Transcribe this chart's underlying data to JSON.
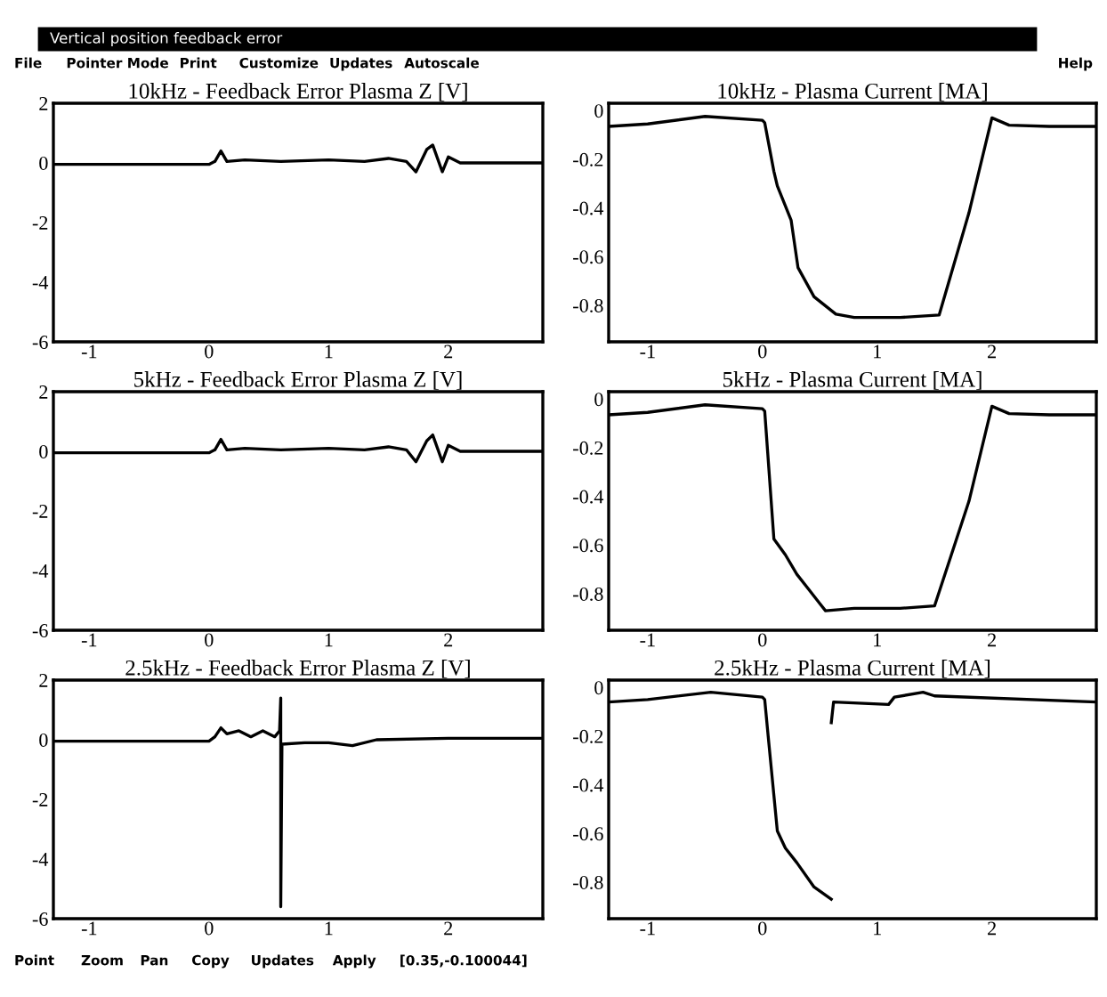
{
  "chart_data": [
    {
      "type": "line",
      "title": "10kHz - Feedback Error Plasma Z [V]",
      "annotations": [
        "Vertical position feedback error",
        "File",
        "Pointer Mode",
        "Print",
        "Customize",
        "Updates",
        "Autoscale",
        "Help"
      ],
      "color": "#000000",
      "xlim": [
        -1.3,
        2.79
      ],
      "ylim": [
        -6,
        2
      ],
      "xticks": [
        -1,
        0,
        1,
        2
      ],
      "yticks": [
        -6,
        -4,
        -2,
        0,
        2
      ],
      "x": [
        -1.3,
        -0.5,
        0,
        0.05,
        0.1,
        0.15,
        0.3,
        0.6,
        1.0,
        1.3,
        1.5,
        1.65,
        1.73,
        1.82,
        1.87,
        1.95,
        2.0,
        2.1,
        2.4,
        2.79
      ],
      "values": [
        -0.05,
        -0.05,
        -0.05,
        0.05,
        0.4,
        0.05,
        0.1,
        0.05,
        0.1,
        0.05,
        0.15,
        0.05,
        -0.3,
        0.45,
        0.6,
        -0.3,
        0.2,
        0.0,
        0.0,
        0.0
      ]
    },
    {
      "type": "line",
      "title": "10kHz - Plasma Current [MA]",
      "color": "#000000",
      "xlim": [
        -1.34,
        2.91
      ],
      "ylim": [
        -0.95,
        0.03
      ],
      "xticks": [
        -1,
        0,
        1,
        2
      ],
      "yticks": [
        -0.8,
        -0.6,
        -0.4,
        -0.2,
        0
      ],
      "x": [
        -1.34,
        -1,
        -0.5,
        0,
        0.02,
        0.1,
        0.13,
        0.25,
        0.31,
        0.45,
        0.64,
        0.8,
        1.2,
        1.54,
        1.8,
        2.0,
        2.15,
        2.5,
        2.91
      ],
      "values": [
        -0.065,
        -0.055,
        -0.024,
        -0.04,
        -0.05,
        -0.25,
        -0.31,
        -0.45,
        -0.645,
        -0.765,
        -0.836,
        -0.85,
        -0.85,
        -0.84,
        -0.42,
        -0.03,
        -0.06,
        -0.065,
        -0.065
      ]
    },
    {
      "type": "line",
      "title": "5kHz - Feedback Error Plasma Z [V]",
      "color": "#000000",
      "xlim": [
        -1.3,
        2.79
      ],
      "ylim": [
        -6,
        2
      ],
      "xticks": [
        -1,
        0,
        1,
        2
      ],
      "yticks": [
        -6,
        -4,
        -2,
        0,
        2
      ],
      "x": [
        -1.3,
        -0.5,
        0,
        0.05,
        0.1,
        0.15,
        0.3,
        0.6,
        1.0,
        1.3,
        1.5,
        1.65,
        1.73,
        1.82,
        1.87,
        1.95,
        2.0,
        2.1,
        2.4,
        2.79
      ],
      "values": [
        -0.05,
        -0.05,
        -0.05,
        0.05,
        0.4,
        0.05,
        0.1,
        0.05,
        0.1,
        0.05,
        0.15,
        0.05,
        -0.35,
        0.35,
        0.55,
        -0.35,
        0.2,
        0.0,
        0.0,
        0.0
      ]
    },
    {
      "type": "line",
      "title": "5kHz - Plasma Current [MA]",
      "color": "#000000",
      "xlim": [
        -1.34,
        2.91
      ],
      "ylim": [
        -0.95,
        0.03
      ],
      "xticks": [
        -1,
        0,
        1,
        2
      ],
      "yticks": [
        -0.8,
        -0.6,
        -0.4,
        -0.2,
        0
      ],
      "x": [
        -1.34,
        -1,
        -0.5,
        0,
        0.02,
        0.1,
        0.2,
        0.3,
        0.4,
        0.5,
        0.55,
        0.8,
        1.2,
        1.5,
        1.8,
        2.0,
        2.15,
        2.5,
        2.91
      ],
      "values": [
        -0.065,
        -0.055,
        -0.024,
        -0.04,
        -0.05,
        -0.575,
        -0.64,
        -0.72,
        -0.78,
        -0.84,
        -0.87,
        -0.86,
        -0.86,
        -0.85,
        -0.42,
        -0.03,
        -0.06,
        -0.065,
        -0.065
      ]
    },
    {
      "type": "line",
      "title": "2.5kHz - Feedback Error Plasma Z [V]",
      "annotations": [
        "Point",
        "Zoom",
        "Pan",
        "Copy",
        "Updates",
        "Apply",
        "[0.35,-0.100044]"
      ],
      "color": "#000000",
      "xlim": [
        -1.3,
        2.79
      ],
      "ylim": [
        -6,
        2
      ],
      "xticks": [
        -1,
        0,
        1,
        2
      ],
      "yticks": [
        -6,
        -4,
        -2,
        0,
        2
      ],
      "x": [
        -1.3,
        -0.5,
        0,
        0.05,
        0.1,
        0.15,
        0.25,
        0.35,
        0.45,
        0.55,
        0.59,
        0.6,
        0.6,
        0.61,
        0.8,
        1.0,
        1.2,
        1.4,
        2.0,
        2.79
      ],
      "values": [
        -0.05,
        -0.05,
        -0.05,
        0.1,
        0.4,
        0.2,
        0.3,
        0.1,
        0.3,
        0.1,
        0.3,
        1.4,
        -5.6,
        -0.15,
        -0.1,
        -0.1,
        -0.2,
        0.0,
        0.05,
        0.05
      ]
    },
    {
      "type": "line",
      "title": "2.5kHz - Plasma Current [MA]",
      "color": "#000000",
      "xlim": [
        -1.34,
        2.91
      ],
      "ylim": [
        -0.95,
        0.03
      ],
      "xticks": [
        -1,
        0,
        1,
        2
      ],
      "yticks": [
        -0.8,
        -0.6,
        -0.4,
        -0.2,
        0
      ],
      "series": [
        {
          "color": "#000000",
          "x": [
            -1.34,
            -1,
            -0.45,
            0,
            0.02,
            0.05,
            0.13,
            0.2,
            0.3,
            0.45,
            0.6
          ],
          "values": [
            -0.06,
            -0.05,
            -0.02,
            -0.04,
            -0.05,
            -0.2,
            -0.59,
            -0.66,
            -0.72,
            -0.82,
            -0.87
          ]
        },
        {
          "color": "#000000",
          "x": [
            0.6,
            0.62,
            1.1,
            1.15,
            1.4,
            1.5,
            2.91
          ],
          "values": [
            -0.145,
            -0.06,
            -0.07,
            -0.04,
            -0.02,
            -0.035,
            -0.06
          ]
        }
      ]
    }
  ]
}
